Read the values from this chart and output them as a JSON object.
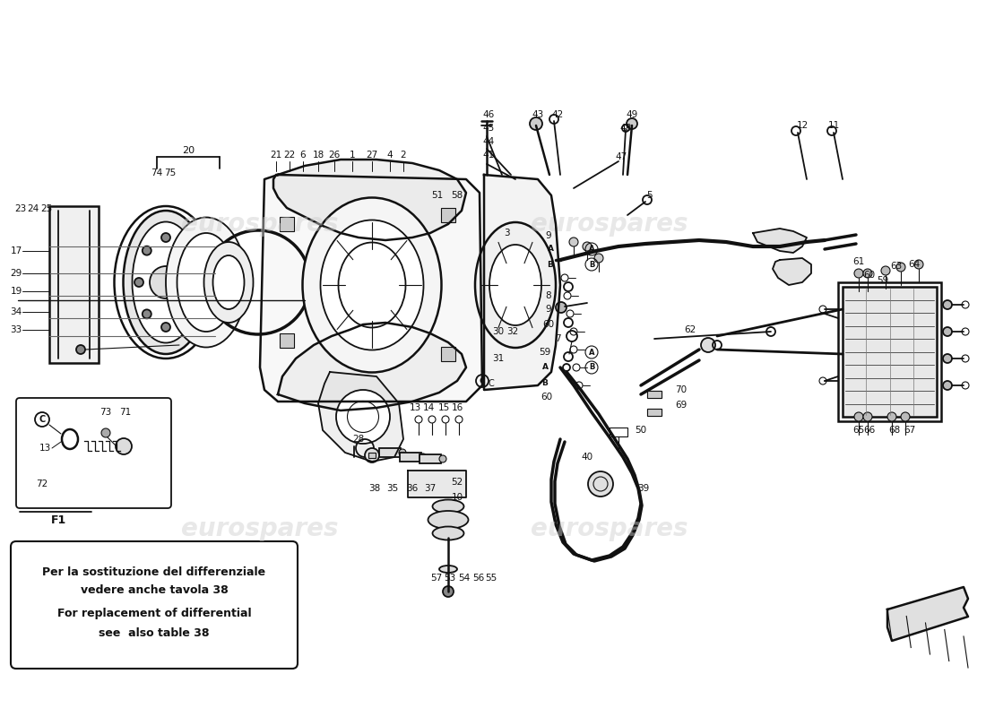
{
  "bg_color": "#ffffff",
  "watermark_color": "#cccccc",
  "watermark_text": "eurospares",
  "note_text_line1": "Per la sostituzione del differenziale",
  "note_text_line2": "vedere anche tavola 38",
  "note_text_line3": "For replacement of differential",
  "note_text_line4": "see  also table 38",
  "f1_label": "F1",
  "figsize": [
    11.0,
    8.0
  ],
  "dpi": 100,
  "color_main": "#111111",
  "color_light": "#888888"
}
